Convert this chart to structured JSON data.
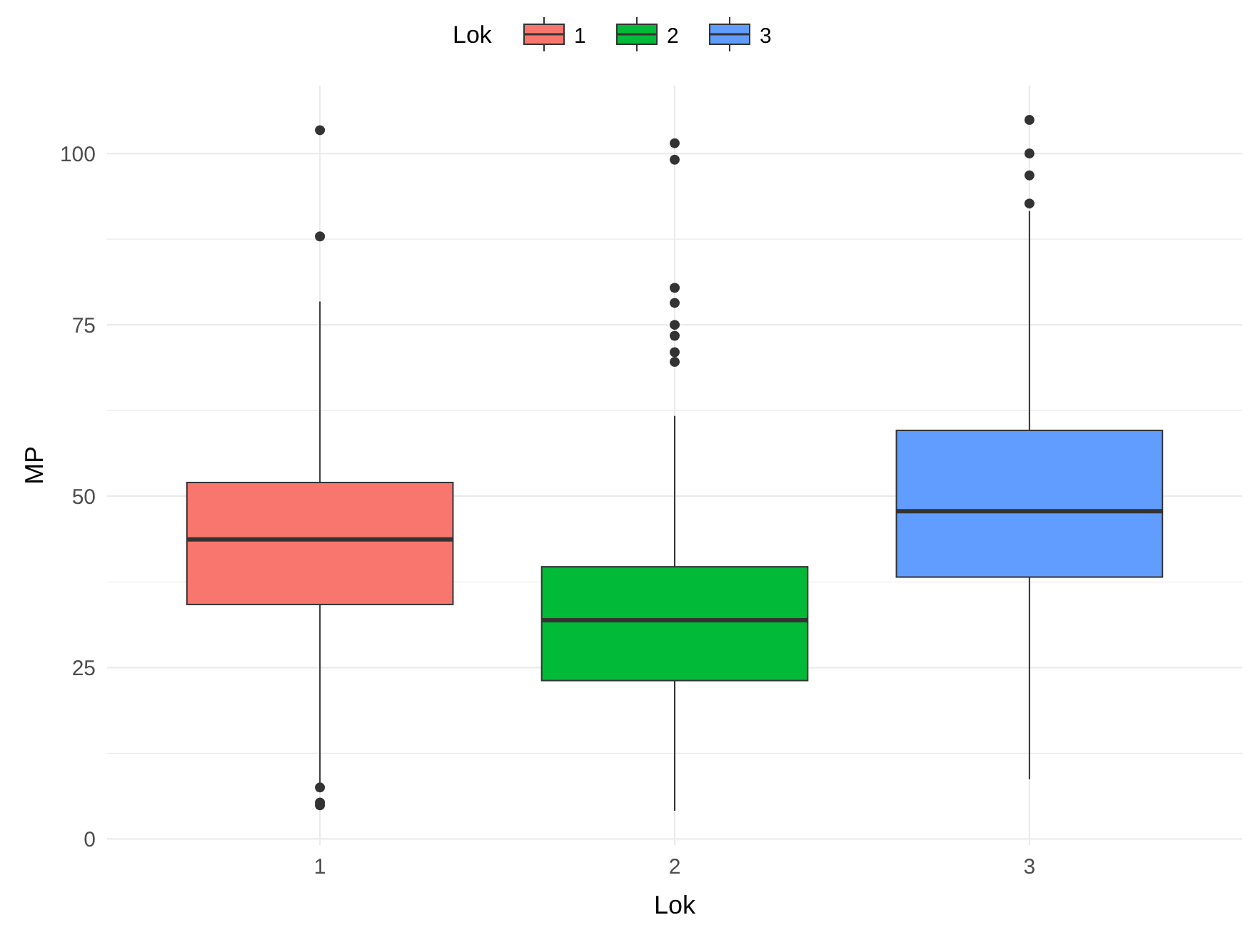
{
  "chart_data": {
    "type": "box",
    "xlabel": "Lok",
    "ylabel": "MP",
    "legend_title": "Lok",
    "legend": "top",
    "grid": true,
    "categories": [
      "1",
      "2",
      "3"
    ],
    "ylim": [
      -0.9,
      109.9
    ],
    "yticks": [
      0,
      {
        "value": 12.5,
        "label": null
      },
      25,
      {
        "value": 37.5,
        "label": null
      },
      50,
      {
        "value": 62.5,
        "label": null
      },
      75,
      {
        "value": 87.5,
        "label": null
      },
      100
    ],
    "series": [
      {
        "name": "1",
        "color": "#f8766d",
        "boxes": [
          {
            "low": 8.0,
            "q1": 34.2,
            "median": 43.7,
            "q3": 52.0,
            "high": 78.4,
            "outliers": [
              103.4,
              87.9,
              7.5,
              5.3,
              4.9
            ]
          },
          null,
          null
        ]
      },
      {
        "name": "2",
        "color": "#00ba38",
        "boxes": [
          null,
          {
            "low": 4.1,
            "q1": 23.1,
            "median": 31.9,
            "q3": 39.7,
            "high": 61.7,
            "outliers": [
              101.5,
              99.1,
              80.4,
              78.2,
              75.0,
              73.4,
              71.0,
              69.6
            ]
          },
          null
        ]
      },
      {
        "name": "3",
        "color": "#619cff",
        "boxes": [
          null,
          null,
          {
            "low": 8.7,
            "q1": 38.2,
            "median": 47.8,
            "q3": 59.6,
            "high": 91.6,
            "outliers": [
              104.9,
              100.0,
              96.8,
              92.7
            ]
          }
        ]
      }
    ]
  }
}
